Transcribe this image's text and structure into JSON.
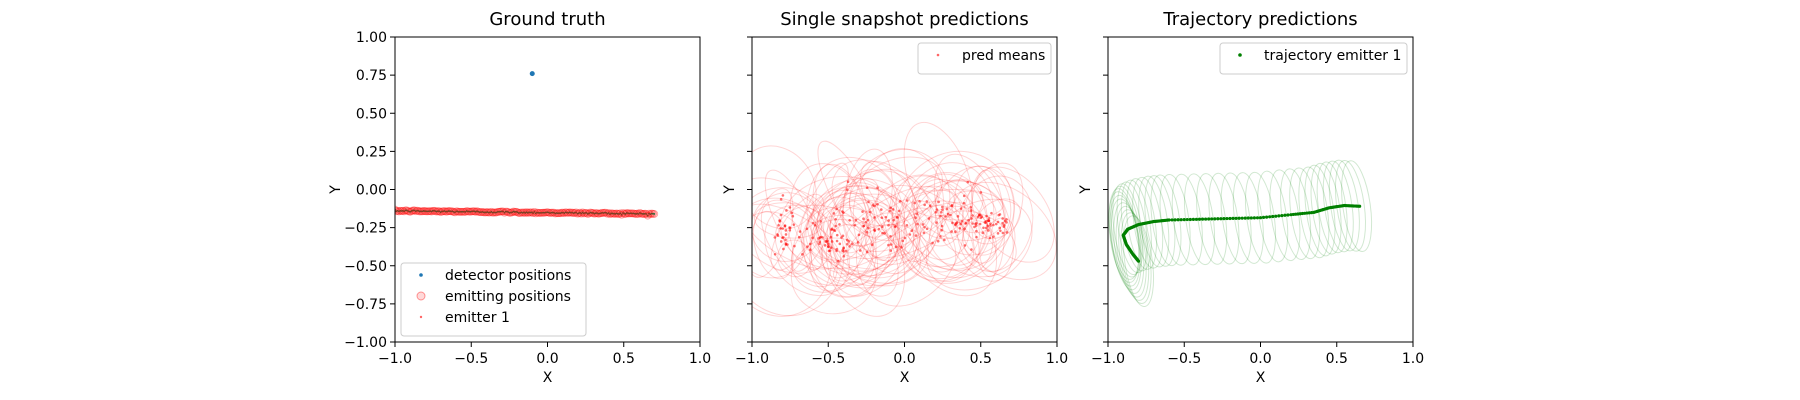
{
  "figure": {
    "background": "#ffffff",
    "colors": {
      "detector": "#1f77b4",
      "emitting": "#ff0000",
      "emitter1": "#1f77b4",
      "trajectory": "#008000"
    }
  },
  "chart_data": [
    {
      "type": "scatter",
      "title": "Ground truth",
      "xlabel": "X",
      "ylabel": "Y",
      "xlim": [
        -1.0,
        1.0
      ],
      "ylim": [
        -1.0,
        1.0
      ],
      "xticks": [
        "−1.0",
        "−0.5",
        "0.0",
        "0.5",
        "1.0"
      ],
      "yticks": [
        "−1.00",
        "−0.75",
        "−0.50",
        "−0.25",
        "0.00",
        "0.25",
        "0.50",
        "0.75",
        "1.00"
      ],
      "grid": false,
      "legend_position": "lower-left",
      "series": [
        {
          "name": "detector positions",
          "points": [
            [
              -0.1,
              0.76
            ]
          ]
        },
        {
          "name": "emitting positions",
          "band": {
            "x_start": -1.0,
            "x_end": 0.7,
            "y_start": -0.14,
            "y_end": -0.16
          }
        },
        {
          "name": "emitter 1",
          "band": {
            "x_start": -1.0,
            "x_end": 0.7,
            "y_start": -0.14,
            "y_end": -0.16
          }
        }
      ]
    },
    {
      "type": "scatter",
      "title": "Single snapshot predictions",
      "xlabel": "X",
      "ylabel": "Y",
      "xlim": [
        -1.0,
        1.0
      ],
      "ylim": [
        -1.0,
        1.0
      ],
      "xticks": [
        "−1.0",
        "−0.5",
        "0.0",
        "0.5",
        "1.0"
      ],
      "grid": false,
      "legend_position": "upper-right",
      "series": [
        {
          "name": "pred means",
          "clusters": [
            {
              "cx": -0.78,
              "cy": -0.25,
              "sx": 0.06,
              "sy": 0.12
            },
            {
              "cx": -0.45,
              "cy": -0.32,
              "sx": 0.15,
              "sy": 0.1
            },
            {
              "cx": -0.15,
              "cy": -0.2,
              "sx": 0.15,
              "sy": 0.15
            },
            {
              "cx": 0.25,
              "cy": -0.22,
              "sx": 0.15,
              "sy": 0.12
            },
            {
              "cx": 0.55,
              "cy": -0.22,
              "sx": 0.1,
              "sy": 0.06
            }
          ]
        }
      ]
    },
    {
      "type": "line",
      "title": "Trajectory predictions",
      "xlabel": "X",
      "ylabel": "Y",
      "xlim": [
        -1.0,
        1.0
      ],
      "ylim": [
        -1.0,
        1.0
      ],
      "xticks": [
        "−1.0",
        "−0.5",
        "0.0",
        "0.5",
        "1.0"
      ],
      "grid": false,
      "legend_position": "upper-right",
      "series": [
        {
          "name": "trajectory emitter 1",
          "path": [
            [
              -0.8,
              -0.47
            ],
            [
              -0.84,
              -0.42
            ],
            [
              -0.88,
              -0.36
            ],
            [
              -0.9,
              -0.3
            ],
            [
              -0.87,
              -0.26
            ],
            [
              -0.8,
              -0.23
            ],
            [
              -0.7,
              -0.21
            ],
            [
              -0.6,
              -0.2
            ],
            [
              -0.4,
              -0.195
            ],
            [
              -0.2,
              -0.19
            ],
            [
              0.0,
              -0.185
            ],
            [
              0.2,
              -0.165
            ],
            [
              0.35,
              -0.15
            ],
            [
              0.45,
              -0.12
            ],
            [
              0.55,
              -0.105
            ],
            [
              0.65,
              -0.11
            ]
          ]
        }
      ]
    }
  ]
}
